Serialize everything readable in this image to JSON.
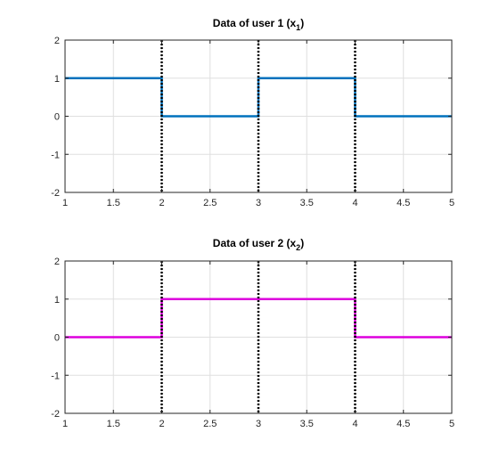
{
  "colors": {
    "grid": "#dfdfdf",
    "axis": "#262626",
    "marker": "#000000",
    "series_user1": "#0072bd",
    "series_user2": "#dd00dd"
  },
  "chart_data": [
    {
      "type": "line",
      "title": "Data of user 1 (x₁)",
      "title_main": "Data of user 1 (x",
      "title_sub": "1",
      "title_close": ")",
      "xlim": [
        1,
        5
      ],
      "ylim": [
        -2,
        2
      ],
      "xticks": [
        1,
        1.5,
        2,
        2.5,
        3,
        3.5,
        4,
        4.5,
        5
      ],
      "xtick_labels": [
        "1",
        "1.5",
        "2",
        "2.5",
        "3",
        "3.5",
        "4",
        "4.5",
        "5"
      ],
      "yticks": [
        -2,
        -1,
        0,
        1,
        2
      ],
      "ytick_labels": [
        "-2",
        "-1",
        "0",
        "1",
        "2"
      ],
      "grid": true,
      "vertical_markers": [
        2,
        3,
        4
      ],
      "series": [
        {
          "color": "#0072bd",
          "x": [
            1,
            2,
            2,
            3,
            3,
            4,
            4,
            5
          ],
          "y": [
            1,
            1,
            0,
            0,
            1,
            1,
            0,
            0
          ]
        }
      ]
    },
    {
      "type": "line",
      "title": "Data of user 2 (x₂)",
      "title_main": "Data of user 2 (x",
      "title_sub": "2",
      "title_close": ")",
      "xlim": [
        1,
        5
      ],
      "ylim": [
        -2,
        2
      ],
      "xticks": [
        1,
        1.5,
        2,
        2.5,
        3,
        3.5,
        4,
        4.5,
        5
      ],
      "xtick_labels": [
        "1",
        "1.5",
        "2",
        "2.5",
        "3",
        "3.5",
        "4",
        "4.5",
        "5"
      ],
      "yticks": [
        -2,
        -1,
        0,
        1,
        2
      ],
      "ytick_labels": [
        "-2",
        "-1",
        "0",
        "1",
        "2"
      ],
      "grid": true,
      "vertical_markers": [
        2,
        3,
        4
      ],
      "series": [
        {
          "color": "#dd00dd",
          "x": [
            1,
            2,
            2,
            4,
            4,
            5
          ],
          "y": [
            0,
            0,
            1,
            1,
            0,
            0
          ]
        }
      ]
    }
  ]
}
